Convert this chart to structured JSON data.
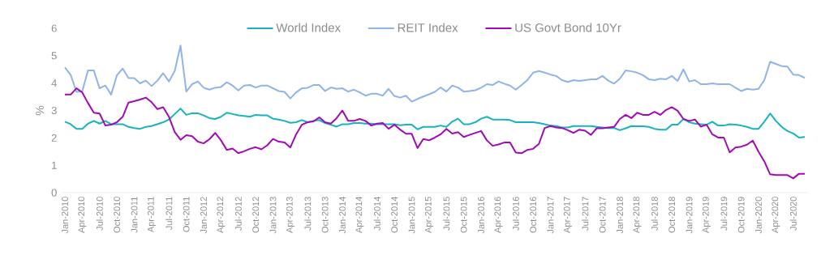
{
  "chart_data": {
    "type": "line",
    "ylabel": "%",
    "categories": [
      "Jan-2010",
      null,
      null,
      "Apr-2010",
      null,
      null,
      "Jul-2010",
      null,
      null,
      "Oct-2010",
      null,
      null,
      "Jan-2011",
      null,
      null,
      "Apr-2011",
      null,
      null,
      "Jul-2011",
      null,
      null,
      "Oct-2011",
      null,
      null,
      "Jan-2012",
      null,
      null,
      "Apr-2012",
      null,
      null,
      "Jul-2012",
      null,
      null,
      "Oct-2012",
      null,
      null,
      "Jan-2013",
      null,
      null,
      "Apr-2013",
      null,
      null,
      "Jul-2013",
      null,
      null,
      "Oct-2013",
      null,
      null,
      "Jan-2014",
      null,
      null,
      "Apr-2014",
      null,
      null,
      "Jul-2014",
      null,
      null,
      "Oct-2014",
      null,
      null,
      "Jan-2015",
      null,
      null,
      "Apr-2015",
      null,
      null,
      "Jul-2015",
      null,
      null,
      "Oct-2015",
      null,
      null,
      "Jan-2016",
      null,
      null,
      "Apr-2016",
      null,
      null,
      "Jul-2016",
      null,
      null,
      "Oct-2016",
      null,
      null,
      "Jan-2017",
      null,
      null,
      "Apr-2017",
      null,
      null,
      "Jul-2017",
      null,
      null,
      "Oct-2017",
      null,
      null,
      "Jan-2018",
      null,
      null,
      "Apr-2018",
      null,
      null,
      "Jul-2018",
      null,
      null,
      "Oct-2018",
      null,
      null,
      "Jan-2019",
      null,
      null,
      "Apr-2019",
      null,
      null,
      "Jul-2019",
      null,
      null,
      "Oct-2019",
      null,
      null,
      "Jan-2020",
      null,
      null,
      "Apr-2020",
      null,
      null,
      "Jul-2020",
      null,
      null
    ],
    "series": [
      {
        "name": "World Index",
        "color": "#17b3be",
        "values": [
          2.59,
          2.5,
          2.33,
          2.33,
          2.52,
          2.62,
          2.52,
          2.62,
          2.5,
          2.5,
          2.5,
          2.4,
          2.36,
          2.33,
          2.4,
          2.43,
          2.5,
          2.57,
          2.67,
          2.87,
          3.07,
          2.84,
          2.9,
          2.9,
          2.82,
          2.72,
          2.69,
          2.77,
          2.92,
          2.87,
          2.82,
          2.8,
          2.77,
          2.84,
          2.82,
          2.82,
          2.7,
          2.67,
          2.62,
          2.55,
          2.57,
          2.65,
          2.57,
          2.62,
          2.65,
          2.54,
          2.48,
          2.41,
          2.5,
          2.5,
          2.54,
          2.54,
          2.52,
          2.52,
          2.5,
          2.5,
          2.5,
          2.5,
          2.46,
          2.48,
          2.48,
          2.31,
          2.4,
          2.4,
          2.4,
          2.45,
          2.4,
          2.59,
          2.7,
          2.5,
          2.5,
          2.57,
          2.7,
          2.77,
          2.67,
          2.67,
          2.67,
          2.65,
          2.57,
          2.57,
          2.57,
          2.57,
          2.54,
          2.5,
          2.45,
          2.43,
          2.38,
          2.38,
          2.43,
          2.43,
          2.43,
          2.43,
          2.4,
          2.38,
          2.36,
          2.36,
          2.28,
          2.35,
          2.43,
          2.42,
          2.42,
          2.4,
          2.33,
          2.3,
          2.3,
          2.48,
          2.48,
          2.69,
          2.57,
          2.52,
          2.5,
          2.48,
          2.59,
          2.45,
          2.45,
          2.5,
          2.48,
          2.45,
          2.4,
          2.33,
          2.33,
          2.59,
          2.89,
          2.62,
          2.4,
          2.25,
          2.16,
          2.01,
          2.03
        ]
      },
      {
        "name": "REIT Index",
        "color": "#8fb4e8",
        "values": [
          4.57,
          4.3,
          3.68,
          3.7,
          4.46,
          4.46,
          3.81,
          3.91,
          3.58,
          4.29,
          4.53,
          4.18,
          4.18,
          3.99,
          4.09,
          3.89,
          4.09,
          4.36,
          4.06,
          4.44,
          5.37,
          3.69,
          3.96,
          4.06,
          3.83,
          3.76,
          3.83,
          3.86,
          4.03,
          3.91,
          3.73,
          3.91,
          3.93,
          3.84,
          3.91,
          3.91,
          3.81,
          3.71,
          3.68,
          3.44,
          3.66,
          3.81,
          3.83,
          3.93,
          3.93,
          3.71,
          3.84,
          3.79,
          3.81,
          3.69,
          3.76,
          3.66,
          3.54,
          3.61,
          3.61,
          3.54,
          3.79,
          3.53,
          3.47,
          3.54,
          3.32,
          3.42,
          3.51,
          3.59,
          3.68,
          3.84,
          3.69,
          3.91,
          3.84,
          3.69,
          3.71,
          3.74,
          3.83,
          3.96,
          3.93,
          4.06,
          3.98,
          3.91,
          3.76,
          3.93,
          4.11,
          4.38,
          4.44,
          4.38,
          4.31,
          4.26,
          4.11,
          4.04,
          4.11,
          4.08,
          4.11,
          4.14,
          4.14,
          4.26,
          4.09,
          3.98,
          4.16,
          4.46,
          4.43,
          4.38,
          4.29,
          4.14,
          4.11,
          4.16,
          4.14,
          4.26,
          4.08,
          4.5,
          4.06,
          4.11,
          3.96,
          3.96,
          3.99,
          3.96,
          3.96,
          3.96,
          3.83,
          3.71,
          3.79,
          3.76,
          3.79,
          4.11,
          4.78,
          4.7,
          4.62,
          4.6,
          4.31,
          4.29,
          4.19
        ]
      },
      {
        "name": "US Govt Bond 10Yr",
        "color": "#a10ab4",
        "values": [
          3.58,
          3.58,
          3.81,
          3.66,
          3.27,
          2.92,
          2.89,
          2.45,
          2.48,
          2.57,
          2.77,
          3.29,
          3.34,
          3.4,
          3.47,
          3.3,
          3.05,
          3.12,
          2.77,
          2.21,
          1.93,
          2.1,
          2.06,
          1.86,
          1.8,
          1.95,
          2.18,
          1.91,
          1.56,
          1.61,
          1.44,
          1.51,
          1.6,
          1.66,
          1.58,
          1.73,
          1.96,
          1.86,
          1.83,
          1.65,
          2.13,
          2.48,
          2.57,
          2.6,
          2.75,
          2.57,
          2.52,
          2.72,
          3.0,
          2.62,
          2.62,
          2.69,
          2.62,
          2.45,
          2.52,
          2.54,
          2.33,
          2.48,
          2.3,
          2.15,
          2.15,
          1.63,
          1.96,
          1.91,
          2.01,
          2.13,
          2.33,
          2.16,
          2.21,
          2.03,
          2.11,
          2.18,
          2.25,
          1.91,
          1.71,
          1.76,
          1.83,
          1.83,
          1.46,
          1.44,
          1.56,
          1.6,
          1.78,
          2.36,
          2.43,
          2.38,
          2.36,
          2.28,
          2.18,
          2.3,
          2.26,
          2.11,
          2.35,
          2.35,
          2.38,
          2.4,
          2.69,
          2.84,
          2.72,
          2.92,
          2.84,
          2.84,
          2.95,
          2.84,
          3.02,
          3.12,
          2.99,
          2.69,
          2.62,
          2.67,
          2.41,
          2.48,
          2.13,
          2.01,
          2.01,
          1.47,
          1.65,
          1.68,
          1.75,
          1.9,
          1.49,
          1.14,
          0.67,
          0.64,
          0.64,
          0.64,
          0.52,
          0.69,
          0.69
        ]
      }
    ],
    "ylim": [
      0,
      6
    ],
    "yticks": [
      0,
      1,
      2,
      3,
      4,
      5,
      6
    ],
    "legend": "top"
  }
}
